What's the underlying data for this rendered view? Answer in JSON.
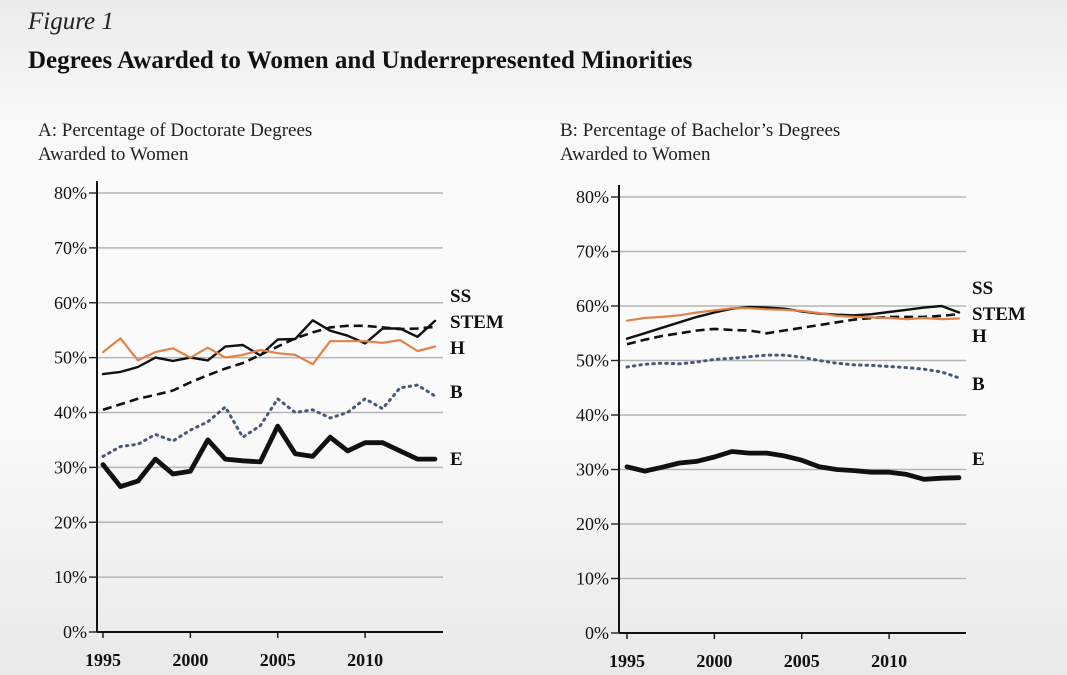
{
  "figure": {
    "label": "Figure 1",
    "title": "Degrees Awarded to Women and Underrepresented Minorities"
  },
  "colors": {
    "orange": "#e0824a",
    "black": "#111111",
    "blue_dotted": "#4a5878",
    "grid": "#b5b5b5"
  },
  "chart_data": [
    {
      "type": "line",
      "title_lines": [
        "A: Percentage of Doctorate Degrees",
        "Awarded to Women"
      ],
      "xlabel": "",
      "ylabel": "",
      "xlim": [
        1995,
        2014
      ],
      "ylim": [
        0,
        80
      ],
      "y_ticks": [
        0,
        10,
        20,
        30,
        40,
        50,
        60,
        70,
        80
      ],
      "y_tick_labels": [
        "0%",
        "10%",
        "20%",
        "30%",
        "40%",
        "50%",
        "60%",
        "70%",
        "80%"
      ],
      "x_ticks": [
        1995,
        2000,
        2005,
        2010
      ],
      "x_tick_labels": [
        "1995",
        "2000",
        "2005",
        "2010"
      ],
      "grid": true,
      "x": [
        1995,
        1996,
        1997,
        1998,
        1999,
        2000,
        2001,
        2002,
        2003,
        2004,
        2005,
        2006,
        2007,
        2008,
        2009,
        2010,
        2011,
        2012,
        2013,
        2014
      ],
      "series": [
        {
          "name": "SS",
          "style": "solid-thin",
          "color": "#111111",
          "values": [
            47,
            47.4,
            48.3,
            50,
            49.4,
            50,
            49.5,
            52,
            52.3,
            50.4,
            53.3,
            53.4,
            56.8,
            54.9,
            54,
            52.6,
            55.3,
            55.3,
            53.8,
            56.7
          ]
        },
        {
          "name": "STEM",
          "style": "dashed",
          "color": "#111111",
          "values": [
            40.5,
            41.5,
            42.5,
            43.2,
            44,
            45.5,
            46.8,
            48,
            49,
            50.5,
            52,
            53.5,
            54.6,
            55.5,
            55.8,
            55.8,
            55.5,
            55.2,
            55.3,
            55.6
          ]
        },
        {
          "name": "H",
          "style": "solid-orange",
          "color": "#e0824a",
          "values": [
            51,
            53.5,
            49.5,
            51,
            51.7,
            50,
            51.8,
            50,
            50.5,
            51.4,
            50.8,
            50.5,
            48.8,
            53,
            53,
            53,
            52.7,
            53.2,
            51.2,
            52
          ]
        },
        {
          "name": "B",
          "style": "dotted",
          "color": "#4a5878",
          "values": [
            32,
            33.8,
            34.2,
            36,
            34.8,
            36.8,
            38.3,
            41,
            35.5,
            37.6,
            42.5,
            40,
            40.5,
            39,
            40,
            42.5,
            40.7,
            44.5,
            45,
            43
          ]
        },
        {
          "name": "E",
          "style": "solid-thick",
          "color": "#111111",
          "values": [
            30.5,
            26.5,
            27.5,
            31.5,
            28.8,
            29.3,
            35,
            31.5,
            31.2,
            31,
            37.5,
            32.5,
            32,
            35.5,
            33,
            34.5,
            34.5,
            33,
            31.5,
            31.5
          ]
        }
      ]
    },
    {
      "type": "line",
      "title_lines": [
        "B: Percentage of Bachelor’s Degrees",
        "Awarded to Women"
      ],
      "xlabel": "",
      "ylabel": "",
      "xlim": [
        1995,
        2014
      ],
      "ylim": [
        0,
        80
      ],
      "y_ticks": [
        0,
        10,
        20,
        30,
        40,
        50,
        60,
        70,
        80
      ],
      "y_tick_labels": [
        "0%",
        "10%",
        "20%",
        "30%",
        "40%",
        "50%",
        "60%",
        "70%",
        "80%"
      ],
      "x_ticks": [
        1995,
        2000,
        2005,
        2010
      ],
      "x_tick_labels": [
        "1995",
        "2000",
        "2005",
        "2010"
      ],
      "grid": true,
      "x": [
        1995,
        1996,
        1997,
        1998,
        1999,
        2000,
        2001,
        2002,
        2003,
        2004,
        2005,
        2006,
        2007,
        2008,
        2009,
        2010,
        2011,
        2012,
        2013,
        2014
      ],
      "series": [
        {
          "name": "SS",
          "style": "solid-thin",
          "color": "#111111",
          "values": [
            54,
            55,
            56,
            57,
            58,
            58.8,
            59.5,
            59.8,
            59.7,
            59.5,
            59,
            58.6,
            58.4,
            58.3,
            58.5,
            58.9,
            59.3,
            59.7,
            60,
            58.8
          ]
        },
        {
          "name": "STEM",
          "style": "dashed",
          "color": "#111111",
          "values": [
            53,
            53.8,
            54.5,
            55,
            55.5,
            55.8,
            55.6,
            55.5,
            55,
            55.5,
            56,
            56.5,
            57,
            57.5,
            57.8,
            58,
            58,
            58,
            58.2,
            58.5
          ]
        },
        {
          "name": "H",
          "style": "solid-orange",
          "color": "#e0824a",
          "values": [
            57.3,
            57.8,
            58,
            58.3,
            58.8,
            59.2,
            59.6,
            59.6,
            59.4,
            59.3,
            59.1,
            58.7,
            58.2,
            58,
            57.9,
            57.8,
            57.6,
            57.8,
            57.6,
            57.7
          ]
        },
        {
          "name": "B",
          "style": "dotted",
          "color": "#4a5878",
          "values": [
            48.8,
            49.3,
            49.5,
            49.4,
            49.7,
            50.2,
            50.4,
            50.7,
            51,
            51,
            50.6,
            50,
            49.5,
            49.2,
            49.1,
            48.9,
            48.7,
            48.4,
            47.9,
            46.8
          ]
        },
        {
          "name": "E",
          "style": "solid-thick",
          "color": "#111111",
          "values": [
            30.5,
            29.7,
            30.4,
            31.2,
            31.5,
            32.3,
            33.3,
            33,
            33,
            32.5,
            31.7,
            30.5,
            30,
            29.8,
            29.5,
            29.5,
            29.1,
            28.2,
            28.4,
            28.5
          ]
        }
      ]
    }
  ]
}
